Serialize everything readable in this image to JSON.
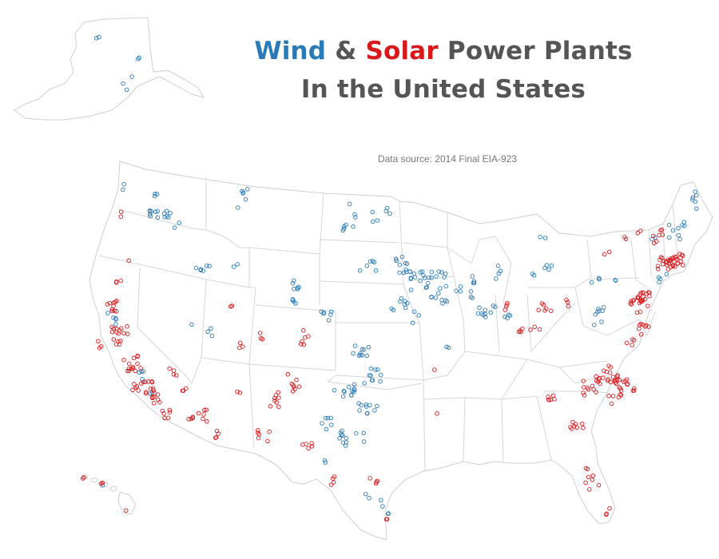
{
  "title": {
    "wind": "Wind",
    "amp": " & ",
    "solar": "Solar",
    "rest": " Power Plants",
    "line2": "In the United States"
  },
  "source": "Data source: 2014 Final EIA-923",
  "colors": {
    "wind": "#2a7ab8",
    "solar": "#d7191c",
    "title": "#555555",
    "state_border": "#cfcfcf"
  },
  "legend": {
    "wind": "wind-power-plants",
    "solar": "solar-power-plants"
  }
}
